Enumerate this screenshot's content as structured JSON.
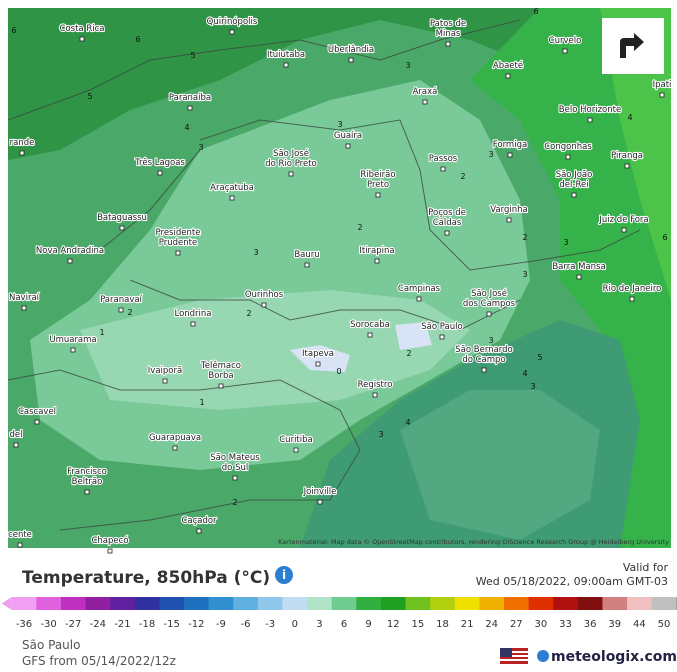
{
  "map": {
    "cities": [
      "Quirinópolis",
      "Costa Rica",
      [
        "Patos de",
        "Minas"
      ],
      "Curvelo",
      "Ituiutaba",
      "Uberlândia",
      "Abaeté",
      "Paranaíba",
      "Araxá",
      "Ipati",
      "Belo Horizonte",
      "rande",
      "Guaíra",
      "Formiga",
      "Congonhas",
      [
        "São José",
        "do Rio Preto"
      ],
      "Três Lagoas",
      "Passos",
      "Piranga",
      [
        "Ribeirão",
        "Preto"
      ],
      [
        "São João",
        "del-Rei"
      ],
      "Araçatuba",
      "Bataguassu",
      [
        "Poços de",
        "Caldas"
      ],
      "Varginha",
      "Juiz de Fora",
      [
        "Presidente",
        "Prudente"
      ],
      "Nova Andradina",
      "Bauru",
      "Itirapina",
      "Barra Mansa",
      "Ourinhos",
      "Campinas",
      [
        "São José",
        "dos Campos"
      ],
      "Rio de Janeiro",
      "Naviraí",
      "Paranavaí",
      "Londrina",
      "Sorocaba",
      "São Paulo",
      "Umuarama",
      [
        "São Bernardo",
        "do Campo"
      ],
      "Itapeva",
      [
        "Telêmaco",
        "Borba"
      ],
      "Ivaiporã",
      "Registro",
      "Cascavel",
      "Guarapuava",
      "Curitiba",
      "del",
      [
        "São Mateus",
        "do Sul"
      ],
      [
        "Francisco",
        "Beltrão"
      ],
      "Joinville",
      "cente",
      "Caçador",
      "Chapecó"
    ],
    "contours": [
      6,
      5,
      6,
      5,
      4,
      3,
      3,
      3,
      3,
      2,
      2,
      2,
      3,
      3,
      2,
      2,
      1,
      1,
      0,
      2,
      3,
      5,
      4,
      3,
      3,
      4,
      2,
      3,
      4,
      6,
      6
    ],
    "attribution": "Kartenmaterial: Map data © OpenStreetMap contributors, rendering GIScience Research Group @ Heidelberg University"
  },
  "header": {
    "title": "Temperature, 850hPa (°C)",
    "valid_label": "Valid for",
    "valid_time": "Wed 05/18/2022, 09:00am GMT-03"
  },
  "legend": {
    "ticks": [
      -36,
      -30,
      -27,
      -24,
      -21,
      -18,
      -15,
      -12,
      -9,
      -6,
      -3,
      0,
      3,
      6,
      9,
      12,
      15,
      18,
      21,
      24,
      27,
      30,
      33,
      36,
      39,
      44,
      50
    ]
  },
  "footer": {
    "location": "São Paulo",
    "model": "GFS from 05/14/2022/12z",
    "brand": "meteologix.com"
  }
}
